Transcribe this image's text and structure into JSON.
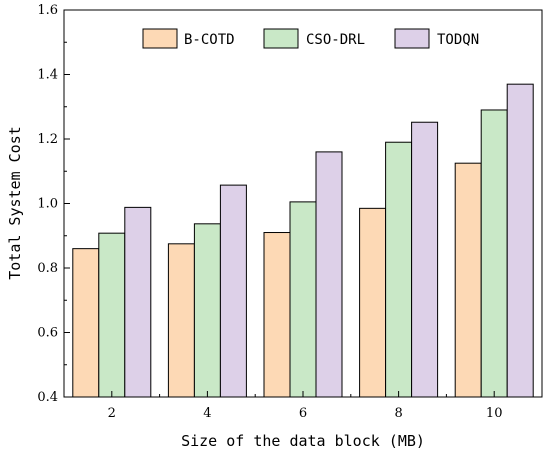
{
  "chart_data": {
    "type": "bar",
    "title": "",
    "xlabel": "Size of the data block (MB)",
    "ylabel": "Total System Cost",
    "categories": [
      "2",
      "4",
      "6",
      "8",
      "10"
    ],
    "ylim": [
      0.4,
      1.6
    ],
    "yticks": [
      "0.4",
      "0.6",
      "0.8",
      "1.0",
      "1.2",
      "1.4",
      "1.6"
    ],
    "grid": false,
    "legend_position": "top-right",
    "series": [
      {
        "name": "B-COTD",
        "color": "#fdd9b5",
        "values": [
          0.86,
          0.875,
          0.91,
          0.985,
          1.125
        ]
      },
      {
        "name": "CSO-DRL",
        "color": "#c9e8c7",
        "values": [
          0.908,
          0.937,
          1.005,
          1.19,
          1.29
        ]
      },
      {
        "name": "TODQN",
        "color": "#ddd0e8",
        "values": [
          0.988,
          1.057,
          1.16,
          1.252,
          1.37
        ]
      }
    ]
  }
}
